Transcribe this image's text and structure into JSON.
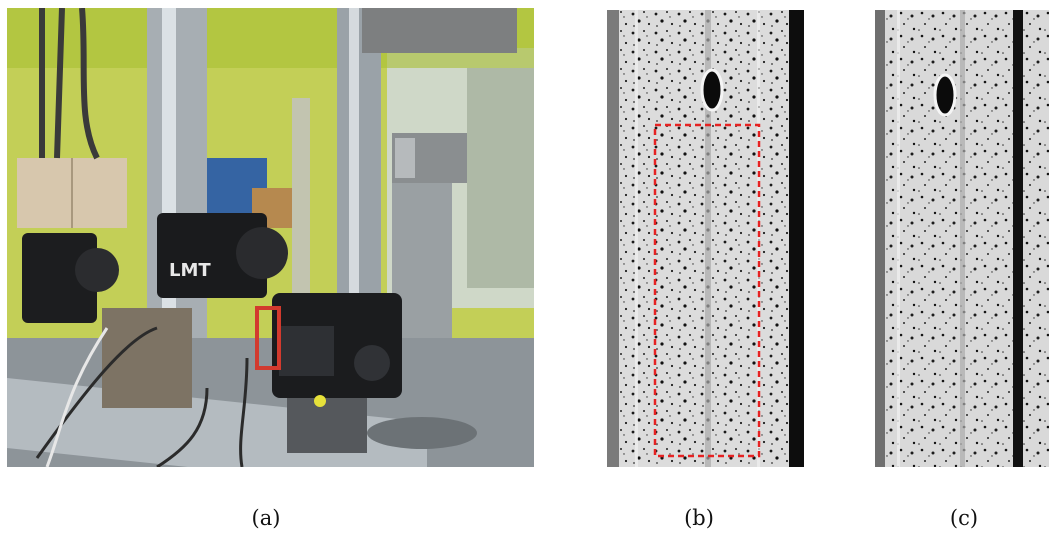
{
  "captions": {
    "a": "(a)",
    "b": "(b)",
    "c": "(c)"
  },
  "photo_a": {
    "camera_label": "LMT"
  },
  "colors": {
    "roi_box": "#e52222",
    "wall_green": "#b7cc3a",
    "specimen_bg": "#d8d8d8",
    "speckle": "#1a1a1a"
  }
}
